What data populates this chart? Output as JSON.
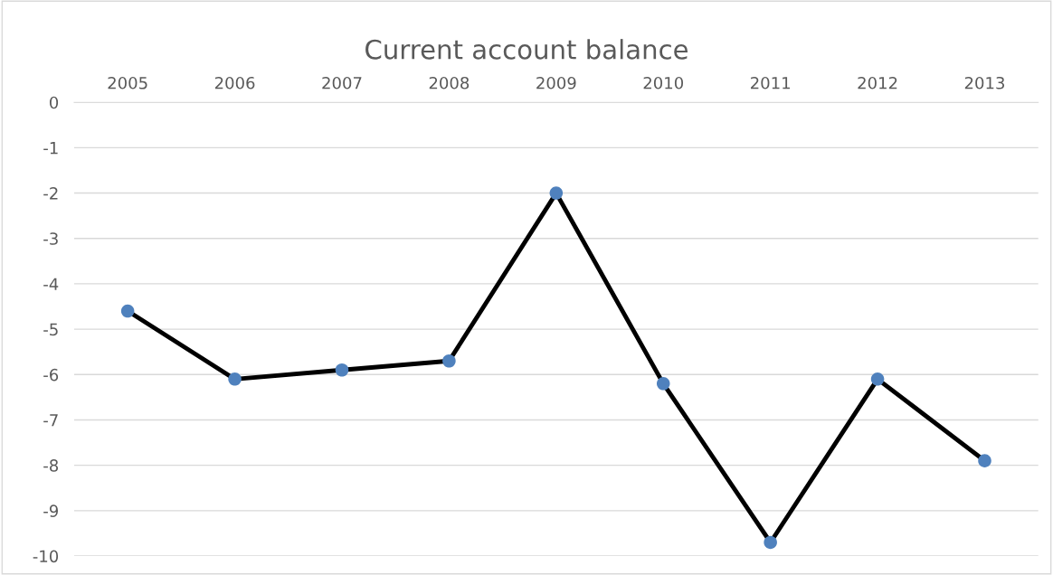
{
  "chart_data": {
    "type": "line",
    "title": "Current account balance",
    "categories": [
      "2005",
      "2006",
      "2007",
      "2008",
      "2009",
      "2010",
      "2011",
      "2012",
      "2013"
    ],
    "series": [
      {
        "color": "#000000",
        "colors": [
          "#4f81bd",
          "#4f81bd",
          "#4f81bd",
          "#4f81bd",
          "#4f81bd",
          "#4f81bd",
          "#4f81bd",
          "#4f81bd",
          "#4f81bd"
        ],
        "values": [
          -4.6,
          -6.1,
          -5.9,
          -5.7,
          -2.0,
          -6.2,
          -9.7,
          -6.1,
          -7.9
        ]
      }
    ],
    "ylim": [
      -10,
      0
    ],
    "yticks": [
      0,
      -1,
      -2,
      -3,
      -4,
      -5,
      -6,
      -7,
      -8,
      -9,
      -10
    ],
    "grid": "y",
    "marker": "circle",
    "line_style": "solid",
    "legend": false
  }
}
